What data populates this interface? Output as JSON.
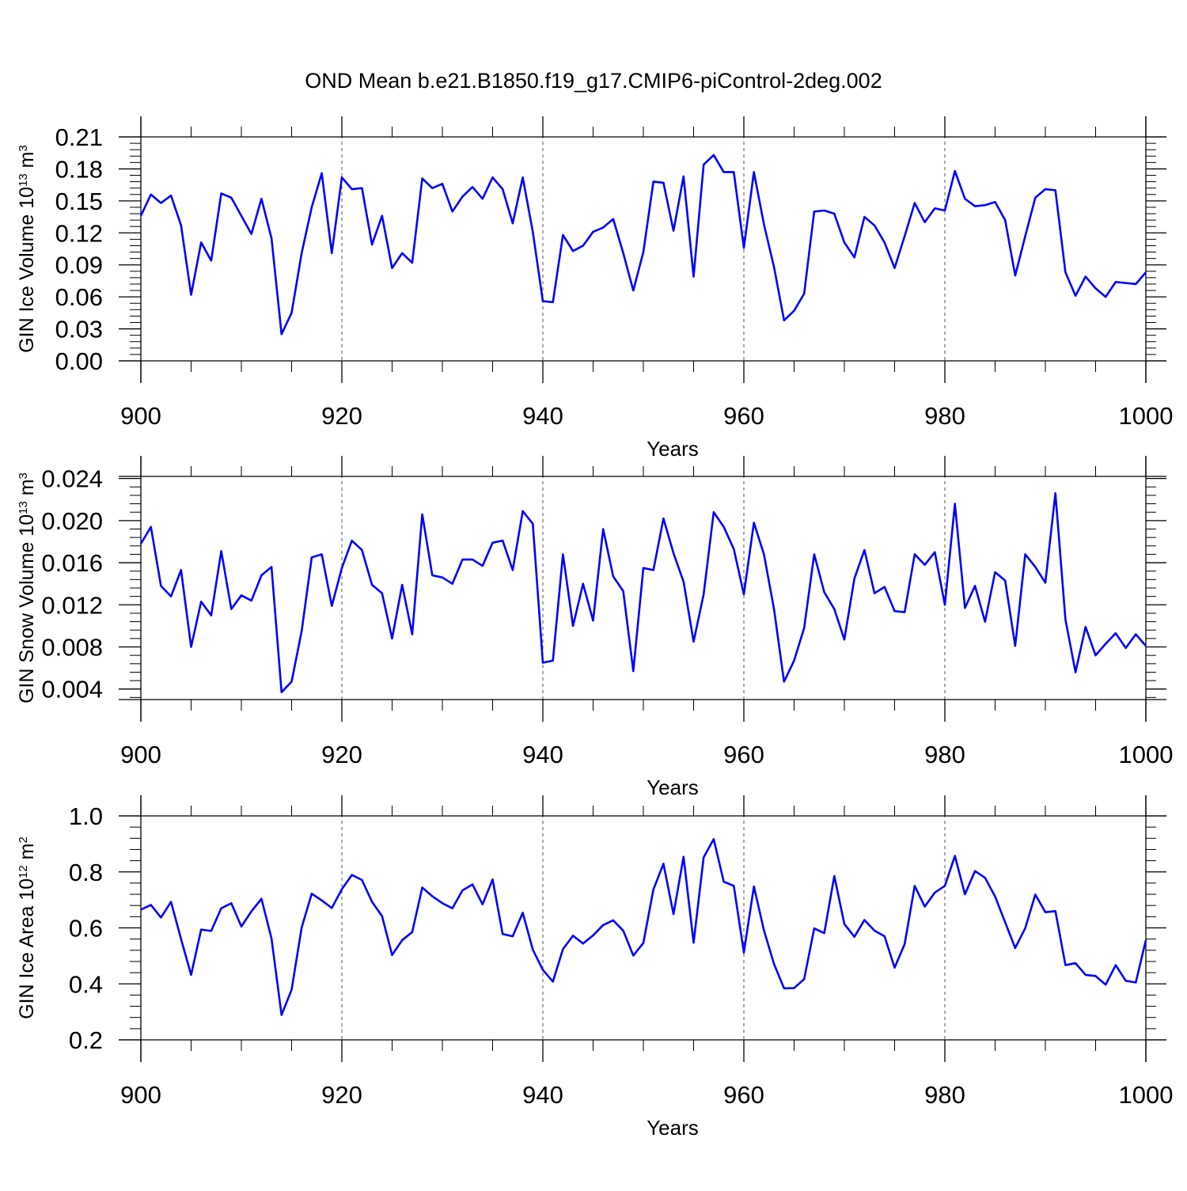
{
  "title": "OND Mean b.e21.B1850.f19_g17.CMIP6-piControl-2deg.002",
  "style": {
    "line_color": "#0000ff",
    "axis_color": "#000000",
    "grid_color": "#555555"
  },
  "chart_data": [
    {
      "type": "line",
      "title": "OND Mean b.e21.B1850.f19_g17.CMIP6-piControl-2deg.002",
      "xlabel": "Years",
      "ylabel": {
        "base": "GIN Ice Volume 10",
        "exp": "13",
        "unit": " m",
        "unit_exp": "3"
      },
      "xlim": [
        900,
        1000
      ],
      "ylim": [
        0.0,
        0.21
      ],
      "xticks": [
        900,
        920,
        940,
        960,
        980,
        1000
      ],
      "xtick_labels": [
        "900",
        "920",
        "940",
        "960",
        "980",
        "1000"
      ],
      "yticks": [
        0.0,
        0.03,
        0.06,
        0.09,
        0.12,
        0.15,
        0.18,
        0.21
      ],
      "ytick_labels": [
        "0.00",
        "0.03",
        "0.06",
        "0.09",
        "0.12",
        "0.15",
        "0.18",
        "0.21"
      ],
      "grid": "vertical dashed at major x ticks",
      "x_start": 900,
      "series": [
        {
          "values": [
            0.136,
            0.156,
            0.148,
            0.155,
            0.127,
            0.062,
            0.111,
            0.094,
            0.157,
            0.153,
            0.136,
            0.119,
            0.152,
            0.115,
            0.025,
            0.045,
            0.101,
            0.144,
            0.176,
            0.101,
            0.172,
            0.161,
            0.162,
            0.109,
            0.136,
            0.087,
            0.101,
            0.092,
            0.171,
            0.162,
            0.166,
            0.14,
            0.154,
            0.163,
            0.152,
            0.172,
            0.161,
            0.129,
            0.172,
            0.121,
            0.056,
            0.055,
            0.118,
            0.103,
            0.108,
            0.121,
            0.125,
            0.133,
            0.101,
            0.066,
            0.102,
            0.168,
            0.167,
            0.122,
            0.173,
            0.079,
            0.184,
            0.193,
            0.177,
            0.177,
            0.106,
            0.177,
            0.128,
            0.088,
            0.038,
            0.047,
            0.063,
            0.14,
            0.141,
            0.138,
            0.111,
            0.097,
            0.135,
            0.127,
            0.111,
            0.087,
            0.117,
            0.148,
            0.13,
            0.143,
            0.141,
            0.178,
            0.152,
            0.145,
            0.146,
            0.149,
            0.132,
            0.08,
            0.117,
            0.153,
            0.161,
            0.16,
            0.083,
            0.061,
            0.079,
            0.068,
            0.06,
            0.074,
            0.073,
            0.072,
            0.083
          ]
        }
      ]
    },
    {
      "type": "line",
      "xlabel": "Years",
      "ylabel": {
        "base": "GIN Snow Volume 10",
        "exp": "13",
        "unit": " m",
        "unit_exp": "3"
      },
      "xlim": [
        900,
        1000
      ],
      "ylim": [
        0.003,
        0.0242
      ],
      "xticks": [
        900,
        920,
        940,
        960,
        980,
        1000
      ],
      "xtick_labels": [
        "900",
        "920",
        "940",
        "960",
        "980",
        "1000"
      ],
      "yticks": [
        0.004,
        0.008,
        0.012,
        0.016,
        0.02,
        0.024
      ],
      "ytick_labels": [
        "0.004",
        "0.008",
        "0.012",
        "0.016",
        "0.020",
        "0.024"
      ],
      "grid": "vertical dashed at major x ticks",
      "x_start": 900,
      "series": [
        {
          "values": [
            0.0178,
            0.0194,
            0.0138,
            0.0128,
            0.0153,
            0.008,
            0.0123,
            0.011,
            0.0171,
            0.0116,
            0.0129,
            0.0124,
            0.0148,
            0.0156,
            0.0037,
            0.0047,
            0.0095,
            0.0165,
            0.0168,
            0.0119,
            0.0155,
            0.0181,
            0.0172,
            0.0139,
            0.0131,
            0.0088,
            0.0139,
            0.0092,
            0.0206,
            0.0148,
            0.0146,
            0.014,
            0.0163,
            0.0163,
            0.0157,
            0.0179,
            0.0181,
            0.0153,
            0.0209,
            0.0197,
            0.0065,
            0.0067,
            0.0168,
            0.01,
            0.014,
            0.0105,
            0.0192,
            0.0147,
            0.0133,
            0.0057,
            0.0155,
            0.0153,
            0.0202,
            0.0169,
            0.0142,
            0.0085,
            0.013,
            0.0208,
            0.0194,
            0.0173,
            0.013,
            0.0198,
            0.0168,
            0.0116,
            0.0047,
            0.0067,
            0.0098,
            0.0168,
            0.0132,
            0.0116,
            0.0087,
            0.0145,
            0.0172,
            0.0131,
            0.0137,
            0.0114,
            0.0113,
            0.0168,
            0.0158,
            0.017,
            0.012,
            0.0216,
            0.0117,
            0.0138,
            0.0104,
            0.0151,
            0.0143,
            0.0081,
            0.0168,
            0.0156,
            0.0141,
            0.0226,
            0.0106,
            0.0056,
            0.0099,
            0.0072,
            0.0083,
            0.0093,
            0.0079,
            0.0092,
            0.0081
          ]
        }
      ]
    },
    {
      "type": "line",
      "xlabel": "Years",
      "ylabel": {
        "base": "GIN Ice Area 10",
        "exp": "12",
        "unit": " m",
        "unit_exp": "2"
      },
      "xlim": [
        900,
        1000
      ],
      "ylim": [
        0.2,
        1.0
      ],
      "xticks": [
        900,
        920,
        940,
        960,
        980,
        1000
      ],
      "xtick_labels": [
        "900",
        "920",
        "940",
        "960",
        "980",
        "1000"
      ],
      "yticks": [
        0.2,
        0.4,
        0.6,
        0.8,
        1.0
      ],
      "ytick_labels": [
        "0.2",
        "0.4",
        "0.6",
        "0.8",
        "1.0"
      ],
      "grid": "vertical dashed at major x ticks",
      "x_start": 900,
      "series": [
        {
          "values": [
            0.665,
            0.682,
            0.637,
            0.693,
            0.56,
            0.432,
            0.594,
            0.589,
            0.67,
            0.688,
            0.605,
            0.659,
            0.704,
            0.562,
            0.289,
            0.379,
            0.601,
            0.722,
            0.698,
            0.671,
            0.738,
            0.789,
            0.771,
            0.693,
            0.642,
            0.503,
            0.556,
            0.585,
            0.744,
            0.713,
            0.688,
            0.67,
            0.734,
            0.755,
            0.684,
            0.773,
            0.578,
            0.57,
            0.654,
            0.522,
            0.45,
            0.408,
            0.524,
            0.572,
            0.544,
            0.573,
            0.61,
            0.627,
            0.59,
            0.501,
            0.546,
            0.737,
            0.829,
            0.649,
            0.854,
            0.547,
            0.852,
            0.917,
            0.765,
            0.75,
            0.512,
            0.748,
            0.591,
            0.471,
            0.384,
            0.385,
            0.417,
            0.598,
            0.581,
            0.785,
            0.614,
            0.568,
            0.628,
            0.59,
            0.57,
            0.458,
            0.542,
            0.75,
            0.676,
            0.726,
            0.75,
            0.857,
            0.72,
            0.803,
            0.779,
            0.712,
            0.62,
            0.528,
            0.599,
            0.719,
            0.656,
            0.66,
            0.467,
            0.474,
            0.432,
            0.428,
            0.397,
            0.467,
            0.411,
            0.405,
            0.556
          ]
        }
      ]
    }
  ]
}
